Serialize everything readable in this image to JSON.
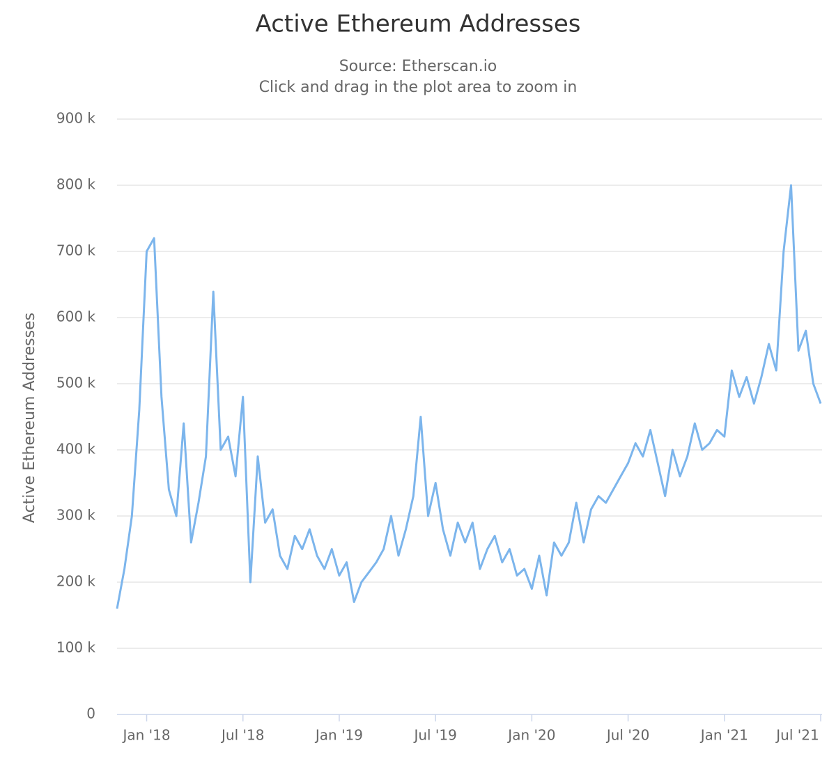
{
  "chart_data": {
    "type": "line",
    "title": "Active Ethereum Addresses",
    "subtitle": [
      "Source: Etherscan.io",
      "Click and drag in the plot area to zoom in"
    ],
    "y_label": "Active Ethereum Addresses",
    "categories": [
      null,
      null,
      null,
      null,
      "Jan '18",
      null,
      null,
      null,
      null,
      null,
      null,
      null,
      null,
      null,
      null,
      null,
      null,
      "Jul '18",
      null,
      null,
      null,
      null,
      null,
      null,
      null,
      null,
      null,
      null,
      null,
      null,
      "Jan '19",
      null,
      null,
      null,
      null,
      null,
      null,
      null,
      null,
      null,
      null,
      null,
      null,
      "Jul '19",
      null,
      null,
      null,
      null,
      null,
      null,
      null,
      null,
      null,
      null,
      null,
      null,
      "Jan '20",
      null,
      null,
      null,
      null,
      null,
      null,
      null,
      null,
      null,
      null,
      null,
      null,
      "Jul '20",
      null,
      null,
      null,
      null,
      null,
      null,
      null,
      null,
      null,
      null,
      null,
      null,
      "Jan '21",
      null,
      null,
      null,
      null,
      null,
      null,
      null,
      null,
      null,
      null,
      null,
      null,
      "Jul '21"
    ],
    "values": [
      160000,
      220000,
      300000,
      460000,
      700000,
      720000,
      480000,
      340000,
      300000,
      440000,
      260000,
      320000,
      390000,
      639000,
      400000,
      420000,
      360000,
      480000,
      200000,
      390000,
      290000,
      310000,
      240000,
      220000,
      270000,
      250000,
      280000,
      240000,
      220000,
      250000,
      210000,
      230000,
      170000,
      200000,
      215000,
      230000,
      250000,
      300000,
      240000,
      280000,
      330000,
      450000,
      300000,
      350000,
      280000,
      240000,
      290000,
      260000,
      290000,
      220000,
      250000,
      270000,
      230000,
      250000,
      210000,
      220000,
      190000,
      240000,
      180000,
      260000,
      240000,
      260000,
      320000,
      260000,
      310000,
      330000,
      320000,
      340000,
      360000,
      380000,
      410000,
      390000,
      430000,
      380000,
      330000,
      400000,
      360000,
      390000,
      440000,
      400000,
      410000,
      430000,
      420000,
      520000,
      480000,
      510000,
      470000,
      510000,
      560000,
      520000,
      700000,
      800000,
      550000,
      580000,
      500000,
      470000
    ],
    "color": "#7cb5ec",
    "ylim": [
      0,
      900000
    ],
    "yticks": [
      0,
      {
        "value": 100000,
        "label": "100 k"
      },
      {
        "value": 200000,
        "label": "200 k"
      },
      {
        "value": 300000,
        "label": "300 k"
      },
      {
        "value": 400000,
        "label": "400 k"
      },
      {
        "value": 500000,
        "label": "500 k"
      },
      {
        "value": 600000,
        "label": "600 k"
      },
      {
        "value": 700000,
        "label": "700 k"
      },
      {
        "value": 800000,
        "label": "800 k"
      },
      {
        "value": 900000,
        "label": "900 k"
      }
    ],
    "grid": true
  }
}
